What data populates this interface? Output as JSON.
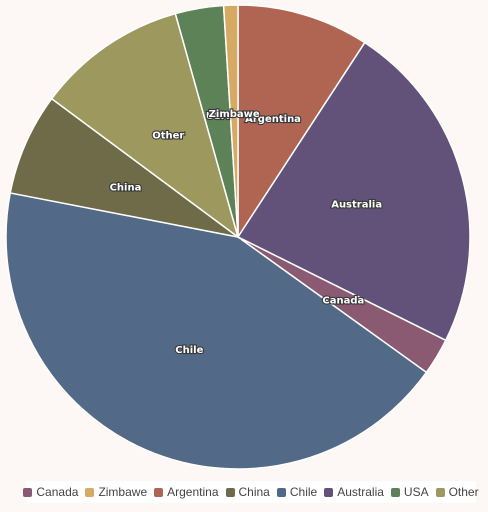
{
  "chart_data": {
    "type": "pie",
    "title": "",
    "categories": [
      "Canada",
      "Zimbawe",
      "Argentina",
      "China",
      "Chile",
      "Australia",
      "USA",
      "Other"
    ],
    "slices": [
      {
        "label": "Argentina",
        "value": 9.3,
        "color": "#b06552"
      },
      {
        "label": "Australia",
        "value": 23.4,
        "color": "#625279"
      },
      {
        "label": "Canada",
        "value": 2.6,
        "color": "#8a5a73"
      },
      {
        "label": "Chile",
        "value": 43.6,
        "color": "#526a87"
      },
      {
        "label": "China",
        "value": 7.2,
        "color": "#6f6a47"
      },
      {
        "label": "Other",
        "value": 10.6,
        "color": "#9d985e"
      },
      {
        "label": "USA",
        "value": 3.4,
        "color": "#5e8258"
      },
      {
        "label": "Zimbawe",
        "value": 1.0,
        "color": "#d6aa62"
      }
    ],
    "legend": {
      "position": "bottom",
      "items": [
        {
          "label": "Canada",
          "color": "#8a5a73"
        },
        {
          "label": "Zimbawe",
          "color": "#d6aa62"
        },
        {
          "label": "Argentina",
          "color": "#b06552"
        },
        {
          "label": "China",
          "color": "#6f6a47"
        },
        {
          "label": "Chile",
          "color": "#526a87"
        },
        {
          "label": "Australia",
          "color": "#625279"
        },
        {
          "label": "USA",
          "color": "#5e8258"
        },
        {
          "label": "Other",
          "color": "#9d985e"
        }
      ]
    }
  }
}
